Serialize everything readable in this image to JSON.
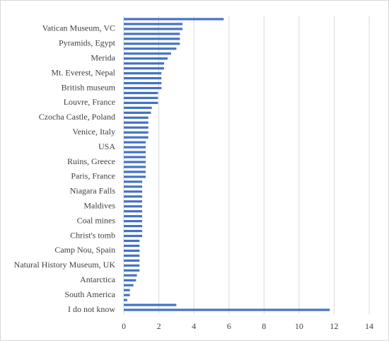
{
  "chart_data": {
    "type": "hbar",
    "color": "#4472c4",
    "grid": true,
    "categories": [
      null,
      null,
      "Vatican Museum, VC",
      null,
      null,
      "Pyramids, Egypt",
      null,
      null,
      "Merida",
      null,
      null,
      "Mt. Everest, Nepal",
      null,
      null,
      "British museum",
      null,
      null,
      "Louvre, France",
      null,
      null,
      "Czocha Castle, Poland",
      null,
      null,
      "Venice, Italy",
      null,
      null,
      "USA",
      null,
      null,
      "Ruins, Greece",
      null,
      null,
      "Paris, France",
      null,
      null,
      "Niagara Falls",
      null,
      null,
      "Maldives",
      null,
      null,
      "Coal mines",
      null,
      null,
      "Christ's tomb",
      null,
      null,
      "Camp Nou, Spain",
      null,
      null,
      "Natural History Museum, UK",
      null,
      null,
      "Antarctica",
      null,
      null,
      "South America",
      null,
      null,
      "I do not know"
    ],
    "values": [
      5.7,
      3.35,
      3.35,
      3.2,
      3.2,
      3.2,
      3.0,
      2.7,
      2.5,
      2.3,
      2.3,
      2.15,
      2.15,
      2.15,
      2.15,
      1.95,
      1.95,
      1.95,
      1.6,
      1.55,
      1.4,
      1.4,
      1.4,
      1.4,
      1.4,
      1.25,
      1.25,
      1.25,
      1.25,
      1.25,
      1.25,
      1.25,
      1.25,
      1.05,
      1.05,
      1.05,
      1.05,
      1.05,
      1.05,
      1.05,
      1.05,
      1.05,
      1.05,
      1.05,
      1.05,
      0.9,
      0.9,
      0.9,
      0.9,
      0.9,
      0.9,
      0.9,
      0.75,
      0.7,
      0.55,
      0.35,
      0.35,
      0.2,
      3.0,
      11.75
    ],
    "xlim": [
      0,
      14
    ],
    "xticks": [
      0,
      2,
      4,
      6,
      8,
      10,
      12,
      14
    ]
  }
}
